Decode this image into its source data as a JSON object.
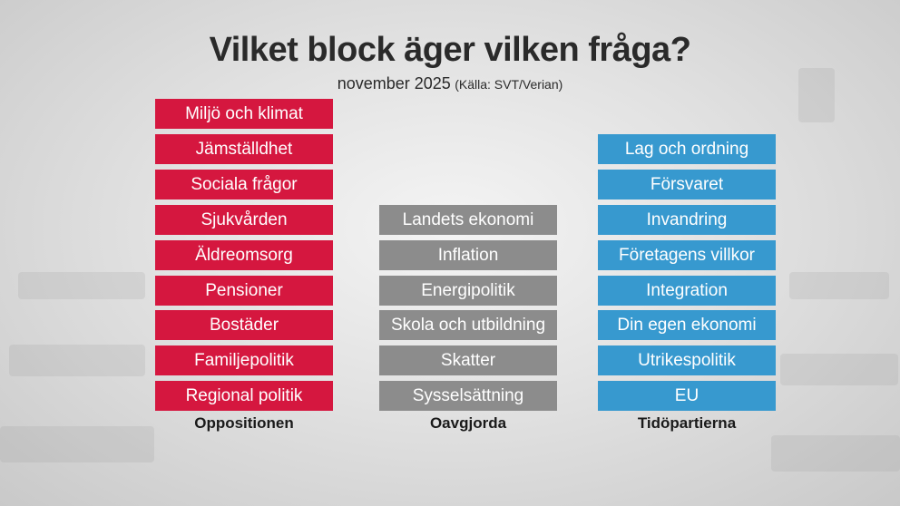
{
  "header": {
    "title": "Vilket block äger vilken fråga?",
    "subtitle": "november 2025",
    "source": "(Källa: SVT/Verian)"
  },
  "columns": [
    {
      "label": "Oppositionen",
      "items": [
        "Miljö och klimat",
        "Jämställdhet",
        "Sociala frågor",
        "Sjukvården",
        "Äldreomsorg",
        "Pensioner",
        "Bostäder",
        "Familjepolitik",
        "Regional politik"
      ]
    },
    {
      "label": "Oavgjorda",
      "items": [
        "Landets ekonomi",
        "Inflation",
        "Energipolitik",
        "Skola och utbildning",
        "Skatter",
        "Sysselsättning"
      ]
    },
    {
      "label": "Tidöpartierna",
      "items": [
        "Lag och ordning",
        "Försvaret",
        "Invandring",
        "Företagens villkor",
        "Integration",
        "Din egen ekonomi",
        "Utrikespolitik",
        "EU"
      ]
    }
  ]
}
